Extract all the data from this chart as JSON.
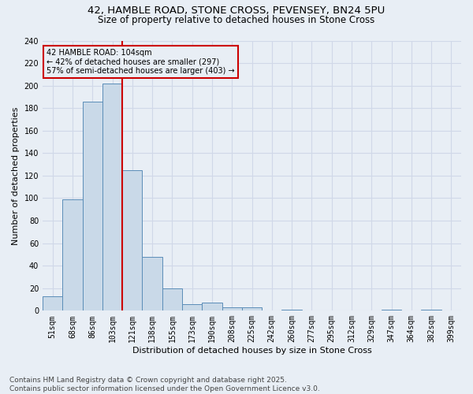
{
  "title1": "42, HAMBLE ROAD, STONE CROSS, PEVENSEY, BN24 5PU",
  "title2": "Size of property relative to detached houses in Stone Cross",
  "xlabel": "Distribution of detached houses by size in Stone Cross",
  "ylabel": "Number of detached properties",
  "categories": [
    "51sqm",
    "68sqm",
    "86sqm",
    "103sqm",
    "121sqm",
    "138sqm",
    "155sqm",
    "173sqm",
    "190sqm",
    "208sqm",
    "225sqm",
    "242sqm",
    "260sqm",
    "277sqm",
    "295sqm",
    "312sqm",
    "329sqm",
    "347sqm",
    "364sqm",
    "382sqm",
    "399sqm"
  ],
  "values": [
    13,
    99,
    186,
    202,
    125,
    48,
    20,
    6,
    7,
    3,
    3,
    0,
    1,
    0,
    0,
    0,
    0,
    1,
    0,
    1,
    0
  ],
  "bar_color": "#c9d9e8",
  "bar_edge_color": "#5b8db8",
  "grid_color": "#d0d8e8",
  "background_color": "#e8eef5",
  "vline_color": "#cc0000",
  "vline_x_index": 3,
  "annotation_text": "42 HAMBLE ROAD: 104sqm\n← 42% of detached houses are smaller (297)\n57% of semi-detached houses are larger (403) →",
  "annotation_box_color": "#cc0000",
  "footer1": "Contains HM Land Registry data © Crown copyright and database right 2025.",
  "footer2": "Contains public sector information licensed under the Open Government Licence v3.0.",
  "ylim": [
    0,
    240
  ],
  "yticks": [
    0,
    20,
    40,
    60,
    80,
    100,
    120,
    140,
    160,
    180,
    200,
    220,
    240
  ],
  "title1_fontsize": 9.5,
  "title2_fontsize": 8.5,
  "tick_fontsize": 7,
  "ylabel_fontsize": 8,
  "xlabel_fontsize": 8,
  "footer_fontsize": 6.5
}
